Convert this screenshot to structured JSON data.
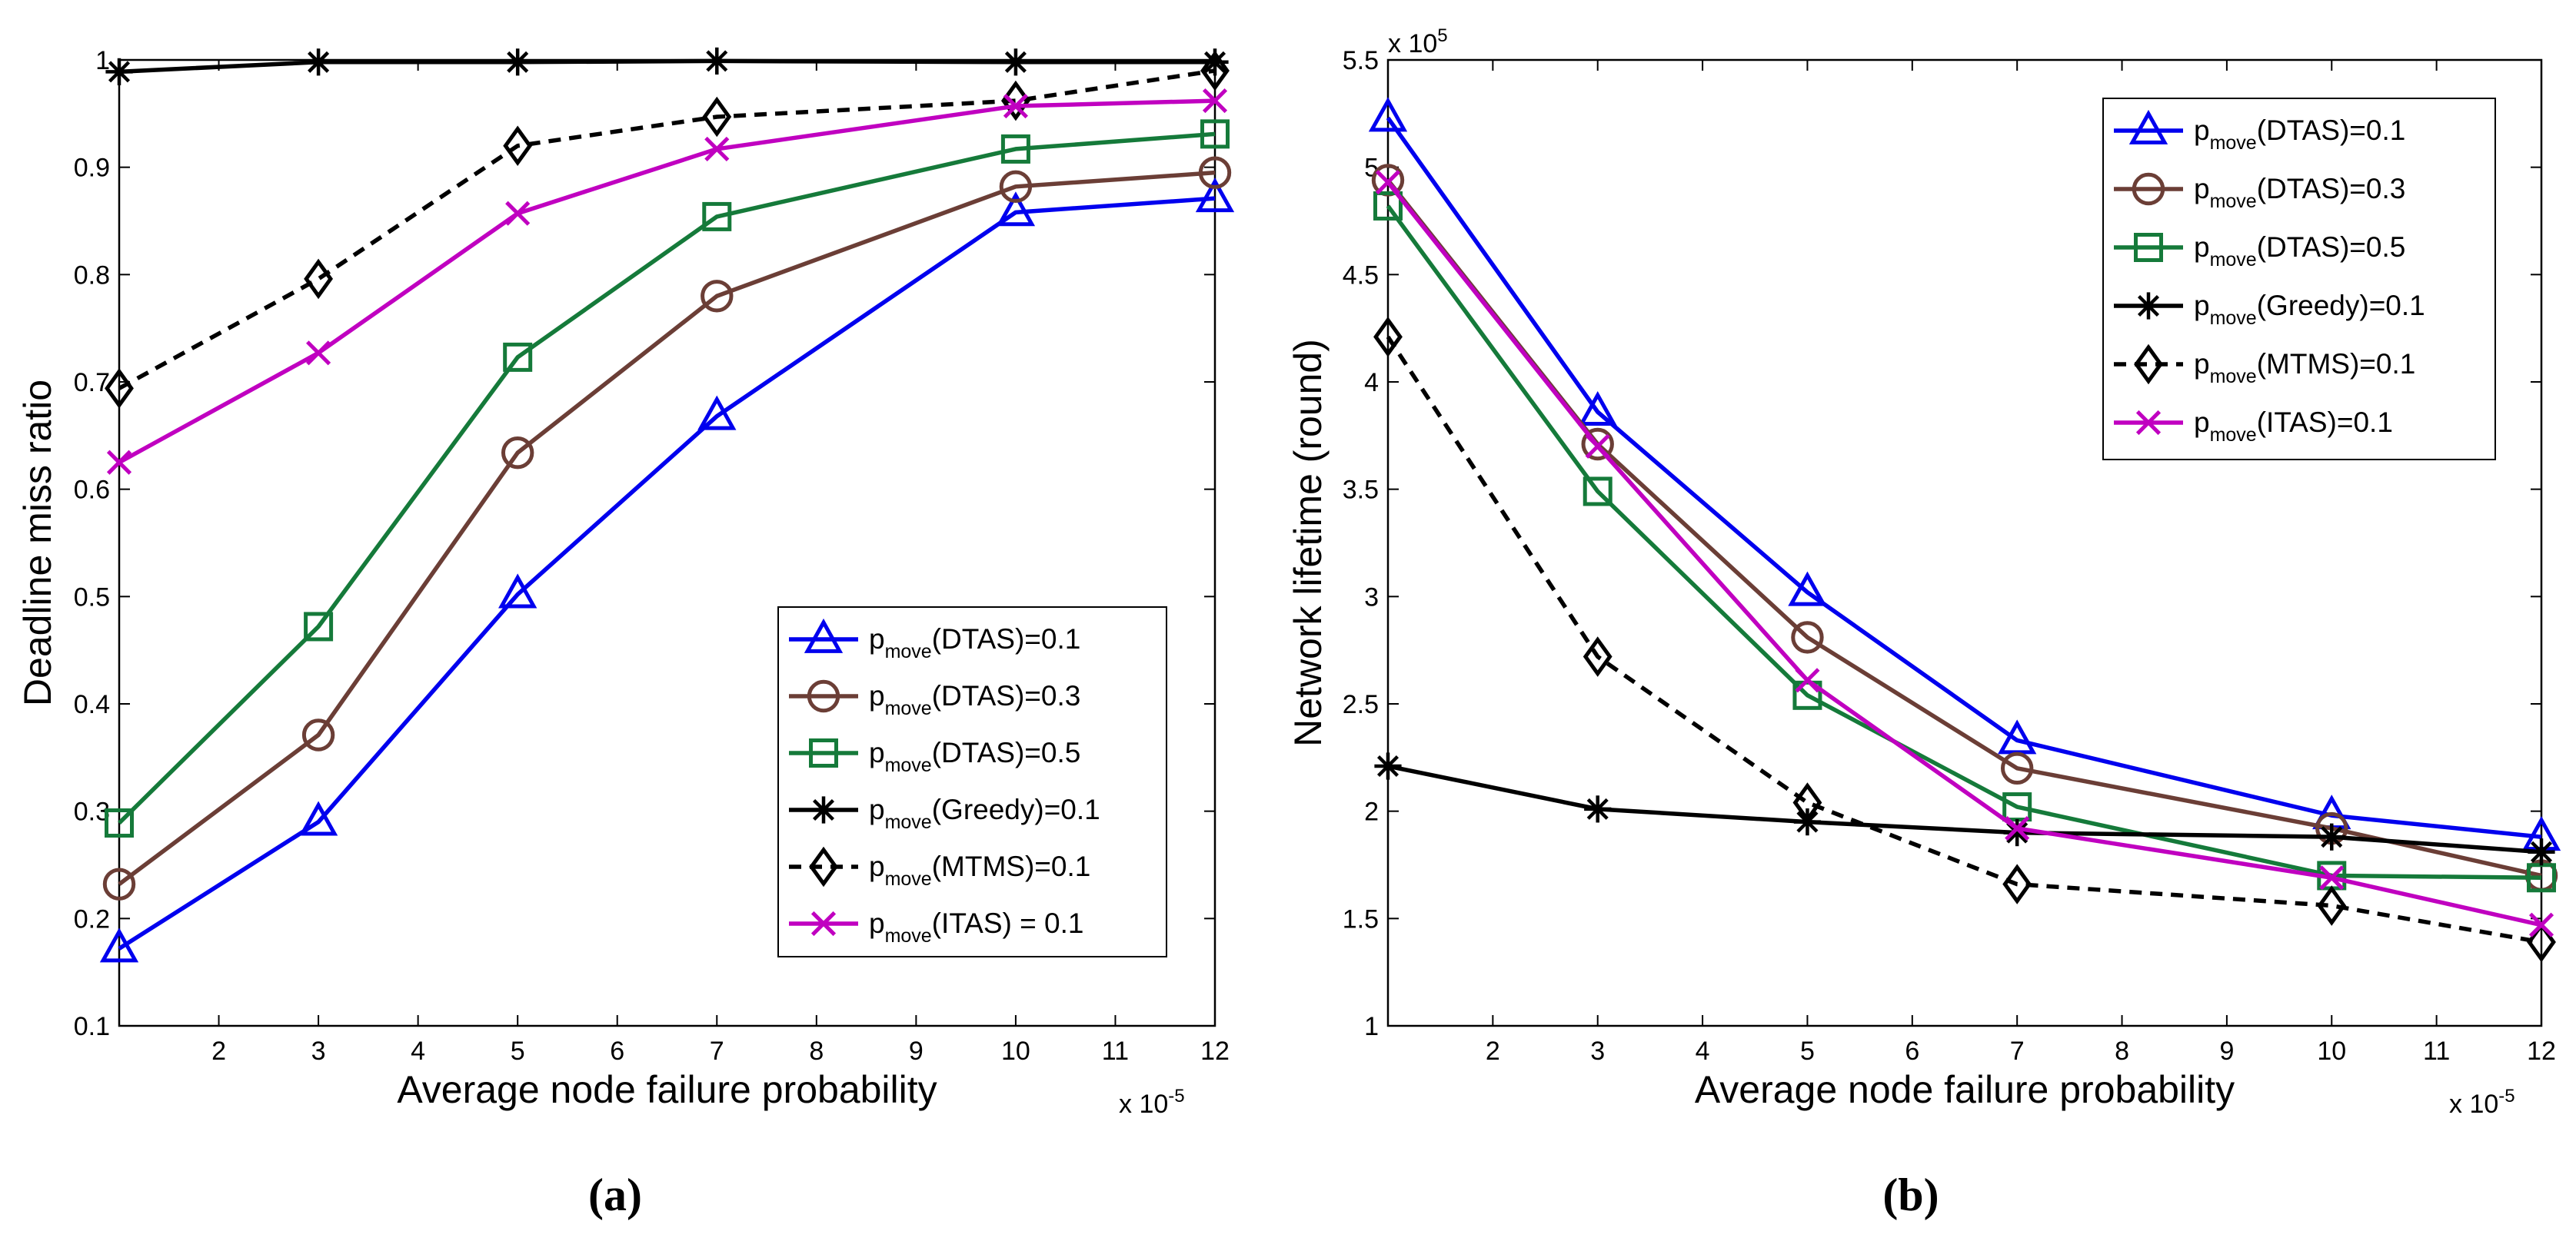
{
  "chart_data": [
    {
      "id": "a",
      "type": "line",
      "caption": "(a)",
      "xlabel": "Average node failure probability",
      "ylabel": "Deadline miss ratio",
      "x_exponent": {
        "prefix": "x 10",
        "power": "-5"
      },
      "xlim": [
        1,
        12
      ],
      "ylim": [
        0.1,
        1
      ],
      "xticks": [
        2,
        3,
        4,
        5,
        6,
        7,
        8,
        9,
        10,
        11,
        12
      ],
      "yticks": [
        0.1,
        0.2,
        0.3,
        0.4,
        0.5,
        0.6,
        0.7,
        0.8,
        0.9,
        1
      ],
      "ytick_labels": [
        "0.1",
        "0.2",
        "0.3",
        "0.4",
        "0.5",
        "0.6",
        "0.7",
        "0.8",
        "0.9",
        "1"
      ],
      "legend_position": "lower-right",
      "x": [
        1,
        3,
        5,
        7,
        10,
        12
      ],
      "series": [
        {
          "legend_main": "p",
          "legend_sub": "move",
          "legend_rest": "(DTAS)=0.1",
          "color": "#0000ee",
          "marker": "triangle",
          "dash": false,
          "values": [
            0.172,
            0.29,
            0.502,
            0.668,
            0.858,
            0.871
          ]
        },
        {
          "legend_main": "p",
          "legend_sub": "move",
          "legend_rest": "(DTAS)=0.3",
          "color": "#6b3e36",
          "marker": "circle",
          "dash": false,
          "values": [
            0.232,
            0.371,
            0.634,
            0.78,
            0.882,
            0.895
          ]
        },
        {
          "legend_main": "p",
          "legend_sub": "move",
          "legend_rest": "(DTAS)=0.5",
          "color": "#157a3a",
          "marker": "square",
          "dash": false,
          "values": [
            0.289,
            0.472,
            0.723,
            0.854,
            0.917,
            0.931
          ]
        },
        {
          "legend_main": "p",
          "legend_sub": "move",
          "legend_rest": "(Greedy)=0.1",
          "color": "#000000",
          "marker": "asterisk",
          "dash": false,
          "values": [
            0.989,
            0.998,
            0.998,
            0.999,
            0.998,
            0.998
          ]
        },
        {
          "legend_main": "p",
          "legend_sub": "move",
          "legend_rest": "(MTMS)=0.1",
          "color": "#000000",
          "marker": "diamond",
          "dash": true,
          "values": [
            0.694,
            0.796,
            0.92,
            0.947,
            0.962,
            0.99
          ]
        },
        {
          "legend_main": "p",
          "legend_sub": "move",
          "legend_rest": "(ITAS) = 0.1",
          "color": "#c000c0",
          "marker": "cross",
          "dash": false,
          "values": [
            0.625,
            0.727,
            0.857,
            0.917,
            0.957,
            0.962
          ]
        }
      ]
    },
    {
      "id": "b",
      "type": "line",
      "caption": "(b)",
      "xlabel": "Average node failure probability",
      "ylabel": "Network lifetime (round)",
      "x_exponent": {
        "prefix": "x 10",
        "power": "-5"
      },
      "y_exponent": {
        "prefix": "x 10",
        "power": "5"
      },
      "xlim": [
        1,
        12
      ],
      "ylim": [
        1,
        5.5
      ],
      "xticks": [
        2,
        3,
        4,
        5,
        6,
        7,
        8,
        9,
        10,
        11,
        12
      ],
      "yticks": [
        1,
        1.5,
        2,
        2.5,
        3,
        3.5,
        4,
        4.5,
        5,
        5.5
      ],
      "ytick_labels": [
        "1",
        "1.5",
        "2",
        "2.5",
        "3",
        "3.5",
        "4",
        "4.5",
        "5",
        "5.5"
      ],
      "legend_position": "top-right",
      "x": [
        1,
        3,
        5,
        7,
        10,
        12
      ],
      "series": [
        {
          "legend_main": "p",
          "legend_sub": "move",
          "legend_rest": "(DTAS)=0.1",
          "color": "#0000ee",
          "marker": "triangle",
          "dash": false,
          "values": [
            5.23,
            3.86,
            3.02,
            2.33,
            1.98,
            1.88
          ]
        },
        {
          "legend_main": "p",
          "legend_sub": "move",
          "legend_rest": "(DTAS)=0.3",
          "color": "#6b3e36",
          "marker": "circle",
          "dash": false,
          "values": [
            4.94,
            3.71,
            2.81,
            2.2,
            1.92,
            1.7
          ]
        },
        {
          "legend_main": "p",
          "legend_sub": "move",
          "legend_rest": "(DTAS)=0.5",
          "color": "#157a3a",
          "marker": "square",
          "dash": false,
          "values": [
            4.82,
            3.49,
            2.54,
            2.02,
            1.7,
            1.69
          ]
        },
        {
          "legend_main": "p",
          "legend_sub": "move",
          "legend_rest": "(Greedy)=0.1",
          "color": "#000000",
          "marker": "asterisk",
          "dash": false,
          "values": [
            2.21,
            2.01,
            1.95,
            1.9,
            1.88,
            1.81
          ]
        },
        {
          "legend_main": "p",
          "legend_sub": "move",
          "legend_rest": "(MTMS)=0.1",
          "color": "#000000",
          "marker": "diamond",
          "dash": true,
          "values": [
            4.21,
            2.72,
            2.04,
            1.66,
            1.56,
            1.39
          ]
        },
        {
          "legend_main": "p",
          "legend_sub": "move",
          "legend_rest": "(ITAS)=0.1",
          "color": "#c000c0",
          "marker": "cross",
          "dash": false,
          "values": [
            4.93,
            3.7,
            2.61,
            1.92,
            1.69,
            1.47
          ]
        }
      ]
    }
  ]
}
